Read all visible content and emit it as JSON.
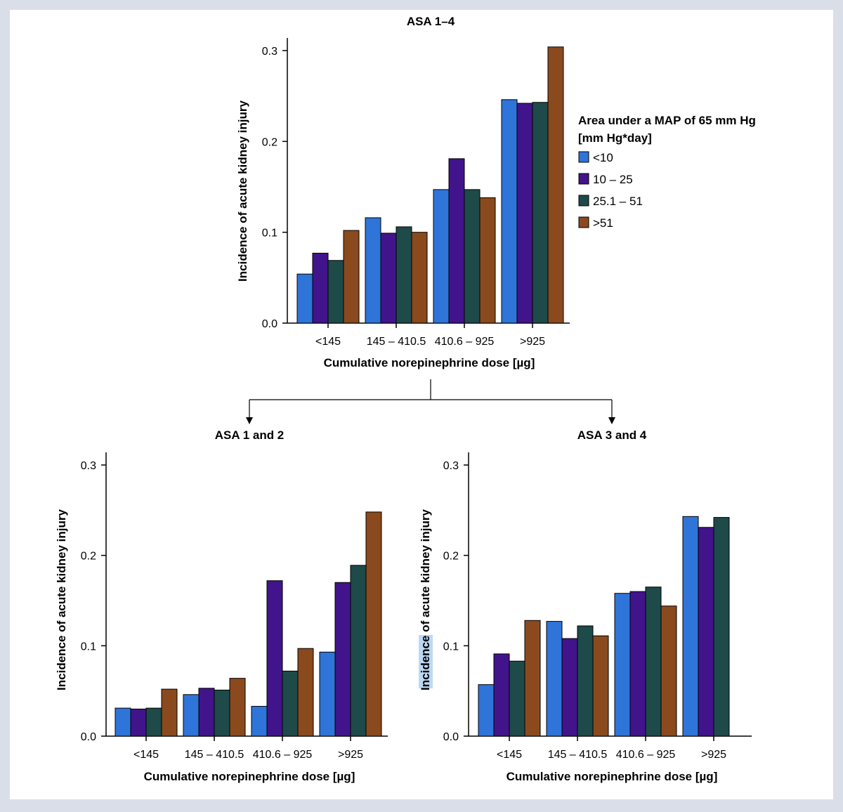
{
  "colors": {
    "background": "#d9dee8",
    "series": [
      "#2f74d8",
      "#41148c",
      "#1f4a4a",
      "#8b4a1d"
    ]
  },
  "legend": {
    "title_line1": "Area under a MAP of 65 mm Hg",
    "title_line2": "[mm Hg*day]"
  },
  "chart_data": [
    {
      "type": "bar",
      "title": "ASA 1–4",
      "xlabel": "Cumulative norepinephrine dose [µg]",
      "ylabel": "Incidence of acute kidney injury",
      "ylim": [
        0,
        0.3
      ],
      "yticks": [
        "0.0",
        "0.1",
        "0.2",
        "0.3"
      ],
      "categories": [
        "<145",
        "145 – 410.5",
        "410.6 – 925",
        ">925"
      ],
      "series": [
        {
          "name": "<10",
          "values": [
            0.054,
            0.116,
            0.147,
            0.246
          ]
        },
        {
          "name": "10 – 25",
          "values": [
            0.077,
            0.099,
            0.181,
            0.242
          ]
        },
        {
          "name": "25.1 – 51",
          "values": [
            0.069,
            0.106,
            0.147,
            0.243
          ]
        },
        {
          "name": ">51",
          "values": [
            0.102,
            0.1,
            0.138,
            0.304
          ]
        }
      ],
      "legend": "right"
    },
    {
      "type": "bar",
      "title": "ASA 1 and 2",
      "xlabel": "Cumulative norepinephrine dose [µg]",
      "ylabel": "Incidence of acute kidney injury",
      "ylim": [
        0,
        0.3
      ],
      "yticks": [
        "0.0",
        "0.1",
        "0.2",
        "0.3"
      ],
      "categories": [
        "<145",
        "145 – 410.5",
        "410.6 – 925",
        ">925"
      ],
      "series": [
        {
          "name": "<10",
          "values": [
            0.031,
            0.046,
            0.033,
            0.093
          ]
        },
        {
          "name": "10 – 25",
          "values": [
            0.03,
            0.053,
            0.172,
            0.17
          ]
        },
        {
          "name": "25.1 – 51",
          "values": [
            0.031,
            0.051,
            0.072,
            0.189
          ]
        },
        {
          "name": ">51",
          "values": [
            0.052,
            0.064,
            0.097,
            0.248
          ]
        }
      ]
    },
    {
      "type": "bar",
      "title": "ASA 3 and 4",
      "xlabel": "Cumulative norepinephrine dose [µg]",
      "ylabel": "Incidence of acute kidney injury",
      "ylim": [
        0,
        0.3
      ],
      "yticks": [
        "0.0",
        "0.1",
        "0.2",
        "0.3"
      ],
      "categories": [
        "<145",
        "145 – 410.5",
        "410.6 – 925",
        ">925"
      ],
      "series": [
        {
          "name": "<10",
          "values": [
            0.057,
            0.127,
            0.158,
            0.243
          ]
        },
        {
          "name": "10 – 25",
          "values": [
            0.091,
            0.108,
            0.16,
            0.231
          ]
        },
        {
          "name": "25.1 – 51",
          "values": [
            0.083,
            0.122,
            0.165,
            0.242
          ]
        },
        {
          "name": ">51",
          "values": [
            0.128,
            0.111,
            0.144,
            null
          ]
        }
      ]
    }
  ]
}
